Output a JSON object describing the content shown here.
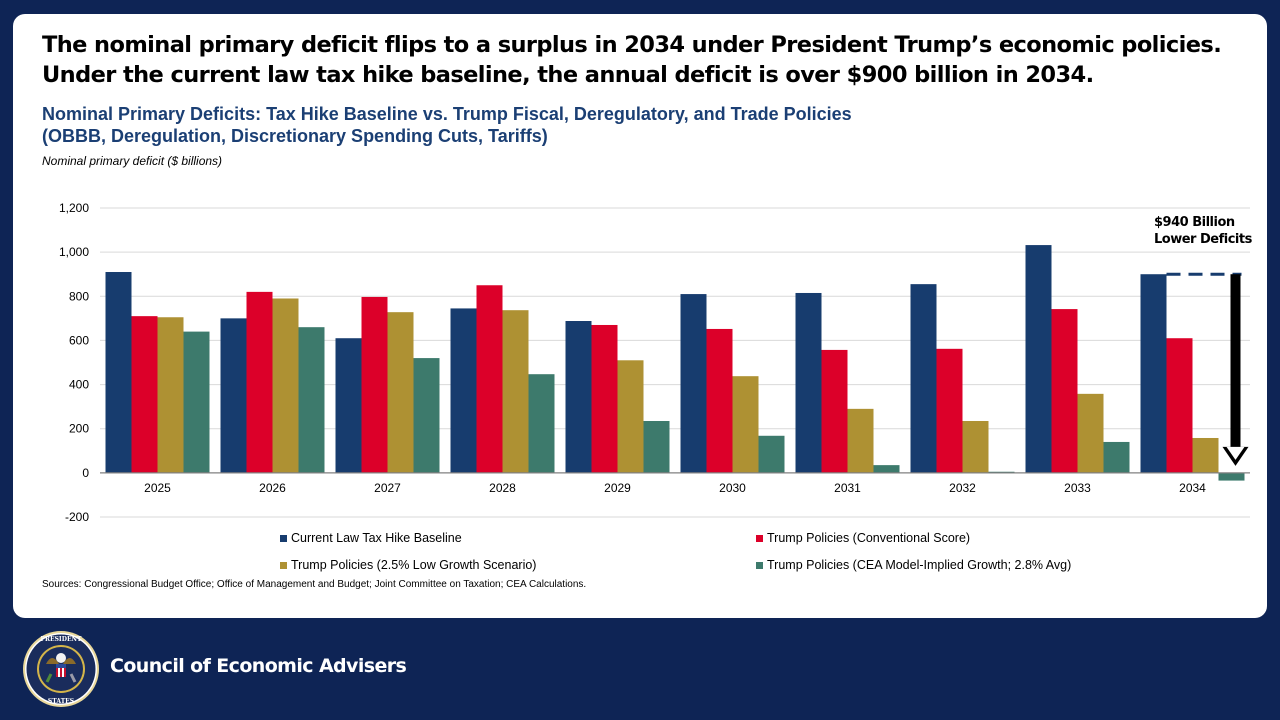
{
  "headline": "The nominal primary deficit flips to a surplus in 2034 under President Trump’s economic policies. Under the current law tax hike baseline, the annual deficit is over $900 billion in 2034.",
  "subtitle_line1": "Nominal Primary Deficits: Tax Hike Baseline vs. Trump Fiscal, Deregulatory, and Trade Policies",
  "subtitle_line2": "(OBBB, Deregulation, Discretionary Spending Cuts, Tariffs)",
  "sources": "Sources: Congressional Budget Office; Office of Management and Budget; Joint Committee on Taxation; CEA Calculations.",
  "footer": {
    "org_name": "Council of Economic Advisers",
    "seal_icon": "executive-office-seal-icon"
  },
  "chart_data": {
    "type": "bar",
    "title": "Nominal Primary Deficits: Tax Hike Baseline vs. Trump Fiscal, Deregulatory, and Trade Policies (OBBB, Deregulation, Discretionary Spending Cuts, Tariffs)",
    "xlabel": "",
    "ylabel": "Nominal primary deficit ($ billions)",
    "ylim": [
      -200,
      1200
    ],
    "yticks": [
      -200,
      0,
      200,
      400,
      600,
      800,
      1000,
      1200
    ],
    "ytick_labels": [
      "-200",
      "0",
      "200",
      "400",
      "600",
      "800",
      "1,000",
      "1,200"
    ],
    "grid": true,
    "legend_position": "bottom",
    "categories": [
      "2025",
      "2026",
      "2027",
      "2028",
      "2029",
      "2030",
      "2031",
      "2032",
      "2033",
      "2034"
    ],
    "series": [
      {
        "name": "Current Law Tax Hike Baseline",
        "color": "#173c6e",
        "values": [
          910,
          700,
          610,
          745,
          688,
          810,
          815,
          855,
          1032,
          900
        ]
      },
      {
        "name": "Trump Policies (Conventional Score)",
        "color": "#dc0029",
        "values": [
          710,
          820,
          797,
          850,
          670,
          652,
          557,
          562,
          742,
          610
        ]
      },
      {
        "name": "Trump Policies (2.5% Low Growth Scenario)",
        "color": "#ae9133",
        "values": [
          705,
          790,
          728,
          737,
          510,
          438,
          290,
          235,
          358,
          158
        ]
      },
      {
        "name": "Trump Policies (CEA Model-Implied Growth; 2.8% Avg)",
        "color": "#3d7a6c",
        "values": [
          640,
          660,
          520,
          447,
          235,
          168,
          35,
          5,
          140,
          -35
        ]
      }
    ],
    "annotations": [
      {
        "text_line1": "$940 Billion",
        "text_line2": "Lower Deficits",
        "category": "2034",
        "from_value": 900,
        "to_value": -35,
        "style": "dashed reference line at baseline level with downward black arrow"
      }
    ]
  }
}
